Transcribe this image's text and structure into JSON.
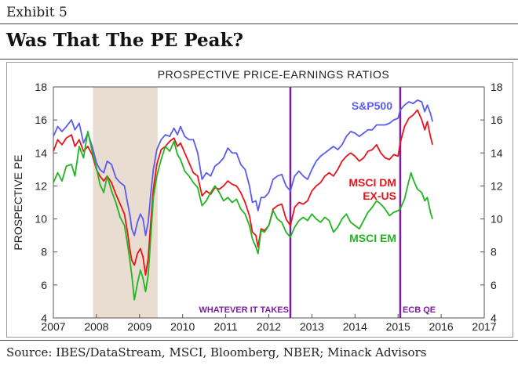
{
  "header": {
    "exhibit": "Exhibit 5",
    "title": "Was That The PE Peak?"
  },
  "footer": {
    "source": "Source: IBES/DataStream, MSCI, Bloomberg, NBER; Minack Advisors"
  },
  "chart_data": {
    "type": "line",
    "title": "PROSPECTIVE PRICE-EARNINGS RATIOS",
    "ylabel": "PROSPECTIVE PE",
    "ylabel_right": "",
    "xlim": [
      2007,
      2017
    ],
    "ylim": [
      4,
      18
    ],
    "x_ticks": [
      "2007",
      "2008",
      "2009",
      "2010",
      "2011",
      "2012",
      "2013",
      "2014",
      "2015",
      "2016",
      "2017"
    ],
    "y_ticks": [
      "4",
      "6",
      "8",
      "10",
      "12",
      "14",
      "16",
      "18"
    ],
    "recession": {
      "start": 2007.92,
      "end": 2009.42,
      "color": "#e8ddd0"
    },
    "events": [
      {
        "x": 2012.5,
        "label": "WHATEVER IT TAKES",
        "color": "#7b1fa2"
      },
      {
        "x": 2015.05,
        "label": "ECB QE",
        "color": "#7b1fa2"
      }
    ],
    "series": [
      {
        "name": "S&P500",
        "color": "#5b5bf0",
        "label_lines": [
          "S&P500"
        ],
        "points": [
          [
            2007,
            15.0
          ],
          [
            2007.1,
            15.6
          ],
          [
            2007.2,
            15.3
          ],
          [
            2007.3,
            15.6
          ],
          [
            2007.42,
            16.0
          ],
          [
            2007.5,
            15.4
          ],
          [
            2007.6,
            15.8
          ],
          [
            2007.7,
            14.6
          ],
          [
            2007.8,
            15.2
          ],
          [
            2007.9,
            14.4
          ],
          [
            2008.0,
            13.4
          ],
          [
            2008.08,
            13.0
          ],
          [
            2008.17,
            12.8
          ],
          [
            2008.25,
            13.5
          ],
          [
            2008.35,
            13.3
          ],
          [
            2008.45,
            12.5
          ],
          [
            2008.55,
            12.2
          ],
          [
            2008.65,
            12.0
          ],
          [
            2008.72,
            11.0
          ],
          [
            2008.78,
            10.2
          ],
          [
            2008.82,
            9.4
          ],
          [
            2008.88,
            9.0
          ],
          [
            2008.95,
            9.8
          ],
          [
            2009.02,
            10.3
          ],
          [
            2009.08,
            10.0
          ],
          [
            2009.14,
            9.0
          ],
          [
            2009.2,
            9.8
          ],
          [
            2009.26,
            11.5
          ],
          [
            2009.32,
            13.0
          ],
          [
            2009.4,
            14.2
          ],
          [
            2009.5,
            14.8
          ],
          [
            2009.6,
            15.1
          ],
          [
            2009.7,
            15.0
          ],
          [
            2009.8,
            15.5
          ],
          [
            2009.88,
            15.1
          ],
          [
            2009.95,
            15.6
          ],
          [
            2010.05,
            15.0
          ],
          [
            2010.15,
            14.8
          ],
          [
            2010.25,
            14.8
          ],
          [
            2010.35,
            14.0
          ],
          [
            2010.45,
            12.4
          ],
          [
            2010.55,
            12.8
          ],
          [
            2010.65,
            12.6
          ],
          [
            2010.75,
            13.2
          ],
          [
            2010.85,
            13.4
          ],
          [
            2010.95,
            13.7
          ],
          [
            2011.05,
            14.3
          ],
          [
            2011.15,
            14.0
          ],
          [
            2011.25,
            14.0
          ],
          [
            2011.35,
            13.3
          ],
          [
            2011.45,
            13.0
          ],
          [
            2011.55,
            12.0
          ],
          [
            2011.62,
            11.0
          ],
          [
            2011.7,
            11.1
          ],
          [
            2011.75,
            10.5
          ],
          [
            2011.82,
            11.3
          ],
          [
            2011.9,
            11.3
          ],
          [
            2012.0,
            11.6
          ],
          [
            2012.1,
            12.4
          ],
          [
            2012.2,
            12.6
          ],
          [
            2012.3,
            12.7
          ],
          [
            2012.4,
            12.0
          ],
          [
            2012.5,
            11.7
          ],
          [
            2012.6,
            12.6
          ],
          [
            2012.7,
            12.9
          ],
          [
            2012.8,
            12.6
          ],
          [
            2012.9,
            12.4
          ],
          [
            2013.0,
            13.0
          ],
          [
            2013.1,
            13.5
          ],
          [
            2013.2,
            13.8
          ],
          [
            2013.3,
            14.0
          ],
          [
            2013.4,
            14.2
          ],
          [
            2013.5,
            14.4
          ],
          [
            2013.6,
            14.2
          ],
          [
            2013.7,
            14.5
          ],
          [
            2013.8,
            15.0
          ],
          [
            2013.9,
            15.3
          ],
          [
            2014.0,
            15.2
          ],
          [
            2014.1,
            15.0
          ],
          [
            2014.2,
            15.2
          ],
          [
            2014.3,
            15.4
          ],
          [
            2014.4,
            15.4
          ],
          [
            2014.5,
            15.7
          ],
          [
            2014.6,
            15.7
          ],
          [
            2014.7,
            15.7
          ],
          [
            2014.8,
            15.8
          ],
          [
            2014.9,
            16.0
          ],
          [
            2015.0,
            16.1
          ],
          [
            2015.05,
            16.6
          ],
          [
            2015.15,
            16.9
          ],
          [
            2015.25,
            17.1
          ],
          [
            2015.35,
            17.0
          ],
          [
            2015.45,
            17.2
          ],
          [
            2015.55,
            17.1
          ],
          [
            2015.62,
            16.5
          ],
          [
            2015.68,
            16.9
          ],
          [
            2015.75,
            16.4
          ],
          [
            2015.8,
            15.9
          ]
        ]
      },
      {
        "name": "MSCI DM EX-US",
        "color": "#e8141a",
        "label_lines": [
          "MSCI DM",
          "EX-US"
        ],
        "points": [
          [
            2007,
            14.1
          ],
          [
            2007.1,
            14.8
          ],
          [
            2007.2,
            14.5
          ],
          [
            2007.3,
            14.9
          ],
          [
            2007.42,
            15.1
          ],
          [
            2007.5,
            14.4
          ],
          [
            2007.6,
            14.8
          ],
          [
            2007.7,
            14.1
          ],
          [
            2007.8,
            14.4
          ],
          [
            2007.9,
            13.9
          ],
          [
            2008.0,
            13.0
          ],
          [
            2008.08,
            12.6
          ],
          [
            2008.17,
            12.3
          ],
          [
            2008.25,
            12.6
          ],
          [
            2008.35,
            12.2
          ],
          [
            2008.45,
            11.5
          ],
          [
            2008.55,
            10.9
          ],
          [
            2008.65,
            10.3
          ],
          [
            2008.72,
            9.2
          ],
          [
            2008.78,
            8.1
          ],
          [
            2008.82,
            7.5
          ],
          [
            2008.88,
            7.2
          ],
          [
            2008.95,
            7.9
          ],
          [
            2009.02,
            8.2
          ],
          [
            2009.08,
            7.7
          ],
          [
            2009.14,
            6.6
          ],
          [
            2009.2,
            7.6
          ],
          [
            2009.26,
            9.8
          ],
          [
            2009.32,
            11.8
          ],
          [
            2009.4,
            13.3
          ],
          [
            2009.5,
            14.2
          ],
          [
            2009.6,
            14.4
          ],
          [
            2009.7,
            14.7
          ],
          [
            2009.8,
            14.9
          ],
          [
            2009.88,
            14.4
          ],
          [
            2009.95,
            14.6
          ],
          [
            2010.05,
            14.0
          ],
          [
            2010.15,
            13.4
          ],
          [
            2010.25,
            12.8
          ],
          [
            2010.35,
            12.6
          ],
          [
            2010.45,
            11.4
          ],
          [
            2010.55,
            11.7
          ],
          [
            2010.65,
            11.5
          ],
          [
            2010.75,
            11.9
          ],
          [
            2010.85,
            11.8
          ],
          [
            2010.95,
            12.0
          ],
          [
            2011.05,
            12.3
          ],
          [
            2011.15,
            12.1
          ],
          [
            2011.25,
            12.0
          ],
          [
            2011.35,
            11.6
          ],
          [
            2011.45,
            11.0
          ],
          [
            2011.55,
            10.2
          ],
          [
            2011.62,
            9.2
          ],
          [
            2011.7,
            9.0
          ],
          [
            2011.75,
            8.3
          ],
          [
            2011.82,
            9.4
          ],
          [
            2011.9,
            9.3
          ],
          [
            2012.0,
            9.6
          ],
          [
            2012.1,
            10.6
          ],
          [
            2012.2,
            10.8
          ],
          [
            2012.3,
            10.9
          ],
          [
            2012.4,
            10.0
          ],
          [
            2012.5,
            9.6
          ],
          [
            2012.6,
            10.7
          ],
          [
            2012.7,
            11.0
          ],
          [
            2012.8,
            10.9
          ],
          [
            2012.9,
            11.1
          ],
          [
            2013.0,
            11.7
          ],
          [
            2013.1,
            12.0
          ],
          [
            2013.2,
            12.2
          ],
          [
            2013.3,
            12.6
          ],
          [
            2013.4,
            12.8
          ],
          [
            2013.5,
            12.6
          ],
          [
            2013.6,
            13.0
          ],
          [
            2013.7,
            13.5
          ],
          [
            2013.8,
            13.8
          ],
          [
            2013.9,
            14.0
          ],
          [
            2014.0,
            13.8
          ],
          [
            2014.1,
            13.5
          ],
          [
            2014.2,
            13.7
          ],
          [
            2014.3,
            14.1
          ],
          [
            2014.4,
            14.2
          ],
          [
            2014.5,
            14.5
          ],
          [
            2014.6,
            14.0
          ],
          [
            2014.7,
            13.7
          ],
          [
            2014.8,
            13.6
          ],
          [
            2014.9,
            13.9
          ],
          [
            2015.0,
            13.8
          ],
          [
            2015.05,
            14.6
          ],
          [
            2015.15,
            15.6
          ],
          [
            2015.25,
            16.1
          ],
          [
            2015.35,
            16.3
          ],
          [
            2015.45,
            16.6
          ],
          [
            2015.55,
            16.0
          ],
          [
            2015.62,
            15.4
          ],
          [
            2015.68,
            15.9
          ],
          [
            2015.75,
            15.0
          ],
          [
            2015.8,
            14.5
          ]
        ]
      },
      {
        "name": "MSCI EM",
        "color": "#22b521",
        "label_lines": [
          "MSCI EM"
        ],
        "points": [
          [
            2007,
            12.2
          ],
          [
            2007.1,
            12.8
          ],
          [
            2007.2,
            12.3
          ],
          [
            2007.3,
            13.2
          ],
          [
            2007.42,
            13.3
          ],
          [
            2007.5,
            12.6
          ],
          [
            2007.6,
            14.4
          ],
          [
            2007.7,
            13.7
          ],
          [
            2007.8,
            15.3
          ],
          [
            2007.9,
            14.1
          ],
          [
            2008.0,
            13.1
          ],
          [
            2008.08,
            12.1
          ],
          [
            2008.17,
            11.6
          ],
          [
            2008.25,
            12.6
          ],
          [
            2008.35,
            11.7
          ],
          [
            2008.45,
            11.0
          ],
          [
            2008.55,
            10.1
          ],
          [
            2008.65,
            9.6
          ],
          [
            2008.72,
            8.5
          ],
          [
            2008.78,
            7.4
          ],
          [
            2008.82,
            6.6
          ],
          [
            2008.88,
            5.1
          ],
          [
            2008.95,
            6.1
          ],
          [
            2009.02,
            6.9
          ],
          [
            2009.08,
            6.4
          ],
          [
            2009.14,
            5.6
          ],
          [
            2009.2,
            6.6
          ],
          [
            2009.26,
            8.9
          ],
          [
            2009.32,
            11.3
          ],
          [
            2009.4,
            12.6
          ],
          [
            2009.5,
            13.6
          ],
          [
            2009.6,
            14.4
          ],
          [
            2009.7,
            14.1
          ],
          [
            2009.8,
            14.7
          ],
          [
            2009.88,
            13.9
          ],
          [
            2009.95,
            13.6
          ],
          [
            2010.05,
            12.9
          ],
          [
            2010.15,
            12.6
          ],
          [
            2010.25,
            12.2
          ],
          [
            2010.35,
            11.9
          ],
          [
            2010.45,
            10.8
          ],
          [
            2010.55,
            11.1
          ],
          [
            2010.65,
            11.6
          ],
          [
            2010.75,
            12.0
          ],
          [
            2010.85,
            11.6
          ],
          [
            2010.95,
            11.1
          ],
          [
            2011.05,
            11.3
          ],
          [
            2011.15,
            11.0
          ],
          [
            2011.25,
            11.2
          ],
          [
            2011.35,
            10.6
          ],
          [
            2011.45,
            10.3
          ],
          [
            2011.55,
            9.6
          ],
          [
            2011.62,
            8.8
          ],
          [
            2011.7,
            8.3
          ],
          [
            2011.75,
            7.9
          ],
          [
            2011.82,
            9.3
          ],
          [
            2011.9,
            9.2
          ],
          [
            2012.0,
            9.6
          ],
          [
            2012.1,
            10.5
          ],
          [
            2012.2,
            10.0
          ],
          [
            2012.3,
            9.8
          ],
          [
            2012.4,
            9.2
          ],
          [
            2012.5,
            8.9
          ],
          [
            2012.6,
            9.5
          ],
          [
            2012.7,
            9.9
          ],
          [
            2012.8,
            10.1
          ],
          [
            2012.9,
            9.9
          ],
          [
            2013.0,
            10.3
          ],
          [
            2013.1,
            10.0
          ],
          [
            2013.2,
            9.8
          ],
          [
            2013.3,
            10.1
          ],
          [
            2013.4,
            9.9
          ],
          [
            2013.5,
            9.2
          ],
          [
            2013.6,
            9.5
          ],
          [
            2013.7,
            10.0
          ],
          [
            2013.8,
            10.3
          ],
          [
            2013.9,
            9.8
          ],
          [
            2014.0,
            9.6
          ],
          [
            2014.1,
            9.4
          ],
          [
            2014.2,
            9.9
          ],
          [
            2014.3,
            10.4
          ],
          [
            2014.4,
            10.7
          ],
          [
            2014.5,
            11.1
          ],
          [
            2014.6,
            10.9
          ],
          [
            2014.7,
            10.6
          ],
          [
            2014.8,
            10.2
          ],
          [
            2014.9,
            10.4
          ],
          [
            2015.0,
            10.5
          ],
          [
            2015.05,
            10.6
          ],
          [
            2015.15,
            11.2
          ],
          [
            2015.25,
            12.3
          ],
          [
            2015.3,
            12.8
          ],
          [
            2015.35,
            12.4
          ],
          [
            2015.45,
            11.8
          ],
          [
            2015.55,
            11.6
          ],
          [
            2015.62,
            11.1
          ],
          [
            2015.68,
            11.3
          ],
          [
            2015.75,
            10.4
          ],
          [
            2015.8,
            10.0
          ]
        ]
      }
    ]
  }
}
